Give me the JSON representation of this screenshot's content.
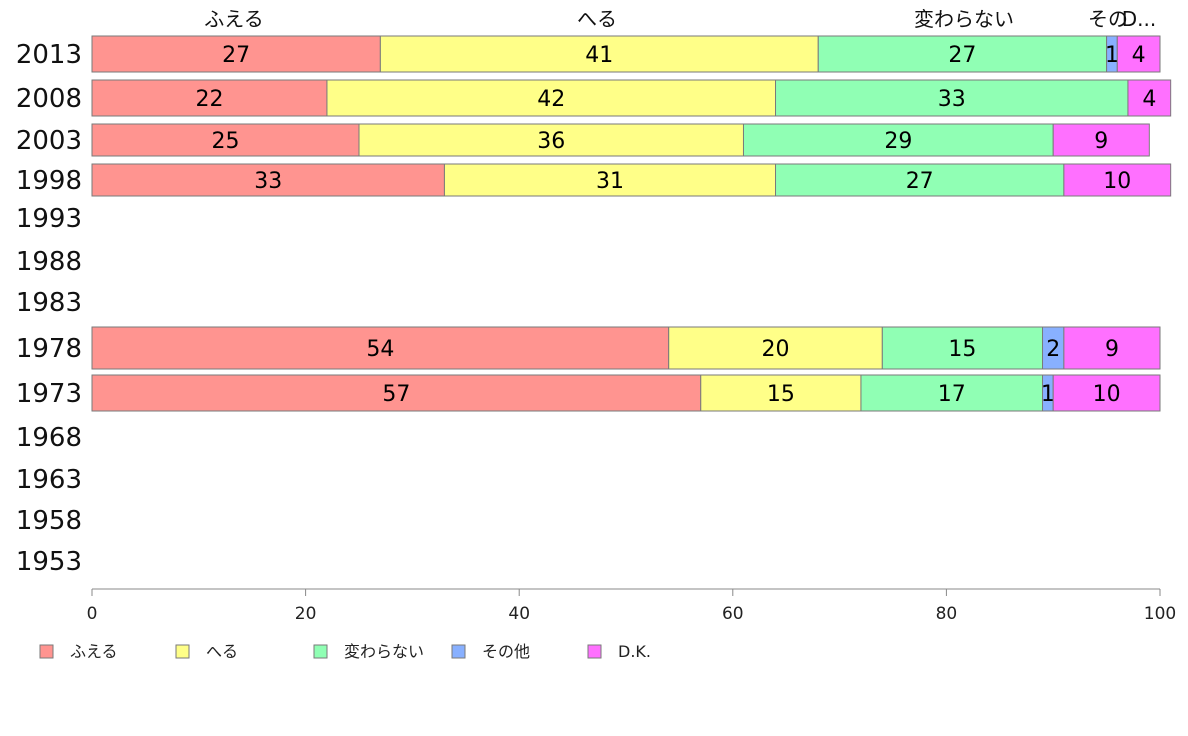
{
  "chart_data": {
    "type": "bar",
    "orientation": "horizontal",
    "stacked": true,
    "categories": [
      "2013",
      "2008",
      "2003",
      "1998",
      "1993",
      "1988",
      "1983",
      "1978",
      "1973",
      "1968",
      "1963",
      "1958",
      "1953"
    ],
    "series": [
      {
        "name": "ふえる",
        "color": "#ff9490",
        "values": [
          27,
          22,
          25,
          33,
          null,
          null,
          null,
          54,
          57,
          null,
          null,
          null,
          null
        ]
      },
      {
        "name": "へる",
        "color": "#ffff88",
        "values": [
          41,
          42,
          36,
          31,
          null,
          null,
          null,
          20,
          15,
          null,
          null,
          null,
          null
        ]
      },
      {
        "name": "変わらない",
        "color": "#90ffb4",
        "values": [
          27,
          33,
          29,
          27,
          null,
          null,
          null,
          15,
          17,
          null,
          null,
          null,
          null
        ]
      },
      {
        "name": "その他",
        "color": "#88b0ff",
        "values": [
          1,
          0,
          0,
          0,
          null,
          null,
          null,
          2,
          1,
          null,
          null,
          null,
          null
        ]
      },
      {
        "name": "D.K.",
        "color": "#ff70ff",
        "values": [
          4,
          4,
          9,
          10,
          null,
          null,
          null,
          9,
          10,
          null,
          null,
          null,
          null
        ]
      }
    ],
    "header_labels": [
      "ふえる",
      "へる",
      "変わらない",
      "その",
      "D..."
    ],
    "xlim": [
      0,
      100
    ],
    "xticks": [
      "0",
      "20",
      "40",
      "60",
      "80",
      "100"
    ],
    "legend_position": "bottom",
    "grid": false
  }
}
